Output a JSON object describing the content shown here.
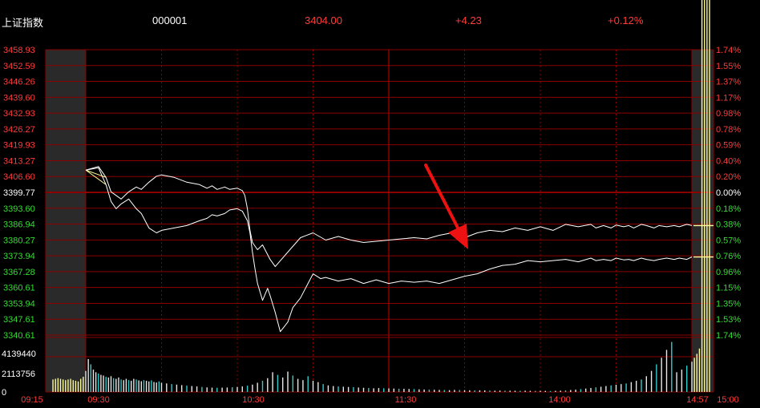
{
  "header": {
    "name": "上证指数",
    "code": "000001",
    "price": "3404.00",
    "change": "+4.23",
    "change_pct": "+0.12%"
  },
  "colors": {
    "background": "#000000",
    "grid": "#8b0000",
    "up": "#ff3b3b",
    "down": "#33dd33",
    "flat": "#ffffff",
    "price_line": "#ffffff",
    "avg_line": "#ffff99",
    "arrow": "#ee1111",
    "auction_shade": "#2a2a2a"
  },
  "chart_data": {
    "type": "line",
    "prev_close": 3399.77,
    "price_axis_labels": [
      "3458.93",
      "3452.59",
      "3446.26",
      "3439.60",
      "3432.93",
      "3426.27",
      "3419.93",
      "3413.27",
      "3406.60",
      "3399.77",
      "3393.60",
      "3386.94",
      "3380.27",
      "3373.94",
      "3367.28",
      "3360.61",
      "3353.94",
      "3347.61",
      "3340.61"
    ],
    "pct_axis_labels": [
      "1.74%",
      "1.55%",
      "1.37%",
      "1.17%",
      "0.98%",
      "0.78%",
      "0.59%",
      "0.40%",
      "0.20%",
      "0.00%",
      "0.18%",
      "0.38%",
      "0.57%",
      "0.76%",
      "0.96%",
      "1.15%",
      "1.35%",
      "1.53%",
      "1.74%"
    ],
    "ylim": [
      3340.61,
      3458.93
    ],
    "volume_axis_labels": [
      "4139440",
      "2113756",
      "0"
    ],
    "volume_ylim": [
      0,
      4139440
    ],
    "time_labels": [
      "09:15",
      "09:30",
      "10:30",
      "11:30",
      "14:00",
      "14:57",
      "15:00"
    ],
    "series": [
      {
        "key": "upper",
        "x": [
          0,
          5,
          8,
          10,
          12,
          14,
          17,
          20,
          22,
          25,
          28,
          30,
          35,
          40,
          45,
          48,
          50,
          52,
          55,
          57,
          60,
          62,
          63,
          64,
          65,
          66,
          68,
          70,
          73,
          75,
          80,
          85,
          90,
          95,
          100,
          105,
          110,
          115,
          120,
          125,
          130,
          135,
          140,
          145,
          150,
          155,
          160,
          165,
          170,
          175,
          180,
          185,
          190,
          195,
          200,
          202,
          205,
          208,
          210,
          213,
          215,
          217,
          220,
          222,
          225,
          227,
          230,
          233,
          235,
          238,
          240
        ],
        "y": [
          3409.0,
          3410.5,
          3406.0,
          3400.0,
          3398.5,
          3397.0,
          3400.0,
          3402.0,
          3401.0,
          3404.0,
          3406.5,
          3407.0,
          3406.0,
          3404.0,
          3403.0,
          3401.5,
          3402.5,
          3401.0,
          3402.0,
          3401.0,
          3401.5,
          3400.5,
          3398.5,
          3393.0,
          3384.0,
          3379.0,
          3376.0,
          3378.0,
          3372.0,
          3369.0,
          3375.0,
          3381.0,
          3383.0,
          3380.0,
          3381.5,
          3380.0,
          3379.0,
          3379.5,
          3380.0,
          3380.5,
          3381.0,
          3380.5,
          3382.0,
          3383.0,
          3381.0,
          3383.0,
          3384.0,
          3383.5,
          3385.0,
          3384.0,
          3385.5,
          3384.0,
          3386.5,
          3385.5,
          3386.5,
          3385.0,
          3386.0,
          3385.0,
          3386.2,
          3385.5,
          3386.0,
          3385.0,
          3386.5,
          3386.0,
          3385.0,
          3386.0,
          3385.5,
          3386.0,
          3385.5,
          3386.5,
          3386.0
        ]
      },
      {
        "key": "lower",
        "x": [
          0,
          5,
          8,
          10,
          12,
          14,
          17,
          20,
          22,
          25,
          28,
          30,
          35,
          40,
          45,
          48,
          50,
          52,
          55,
          57,
          60,
          62,
          63,
          64,
          65,
          66,
          67,
          68,
          70,
          72,
          73,
          75,
          77,
          80,
          82,
          85,
          88,
          90,
          93,
          95,
          100,
          105,
          110,
          115,
          120,
          125,
          130,
          135,
          140,
          145,
          150,
          155,
          160,
          165,
          170,
          175,
          180,
          185,
          190,
          195,
          200,
          202,
          205,
          208,
          210,
          213,
          215,
          217,
          220,
          222,
          225,
          227,
          230,
          233,
          235,
          238,
          240
        ],
        "y": [
          3409.0,
          3410.0,
          3403.0,
          3396.0,
          3393.0,
          3395.0,
          3397.0,
          3393.0,
          3391.0,
          3385.0,
          3383.0,
          3384.0,
          3385.0,
          3386.0,
          3388.0,
          3389.0,
          3390.5,
          3390.0,
          3391.0,
          3392.5,
          3393.0,
          3392.0,
          3390.0,
          3388.0,
          3383.0,
          3375.0,
          3368.0,
          3362.0,
          3355.0,
          3360.0,
          3357.0,
          3350.0,
          3342.0,
          3346.0,
          3352.0,
          3356.0,
          3362.0,
          3366.0,
          3364.0,
          3364.5,
          3363.0,
          3364.0,
          3362.0,
          3363.5,
          3362.0,
          3363.0,
          3362.5,
          3363.0,
          3362.0,
          3363.5,
          3365.0,
          3366.0,
          3368.0,
          3369.5,
          3370.0,
          3371.5,
          3371.0,
          3371.5,
          3372.0,
          3371.0,
          3372.5,
          3371.5,
          3372.0,
          3371.5,
          3372.5,
          3371.8,
          3372.0,
          3371.5,
          3372.5,
          3372.0,
          3371.5,
          3372.0,
          3372.5,
          3372.0,
          3372.5,
          3372.0,
          3373.0
        ]
      }
    ],
    "volume": {
      "x": [
        -13,
        -12,
        -11,
        -10,
        -9,
        -8,
        -7,
        -6,
        -5,
        -4,
        -3,
        -2,
        -1,
        0,
        1,
        2,
        3,
        4,
        5,
        6,
        7,
        8,
        9,
        10,
        11,
        12,
        13,
        14,
        15,
        16,
        17,
        18,
        19,
        20,
        21,
        22,
        23,
        24,
        25,
        26,
        27,
        28,
        29,
        30,
        32,
        34,
        36,
        38,
        40,
        42,
        44,
        46,
        48,
        50,
        52,
        54,
        56,
        58,
        60,
        62,
        64,
        66,
        68,
        70,
        72,
        74,
        76,
        78,
        80,
        82,
        84,
        86,
        88,
        90,
        92,
        94,
        96,
        98,
        100,
        102,
        104,
        106,
        108,
        110,
        112,
        114,
        116,
        118,
        120,
        122,
        124,
        126,
        128,
        130,
        132,
        134,
        136,
        138,
        140,
        142,
        144,
        146,
        148,
        150,
        152,
        154,
        156,
        158,
        160,
        162,
        164,
        166,
        168,
        170,
        172,
        174,
        176,
        178,
        180,
        182,
        184,
        186,
        188,
        190,
        192,
        194,
        196,
        198,
        200,
        202,
        204,
        206,
        208,
        210,
        212,
        214,
        216,
        218,
        220,
        222,
        224,
        226,
        228,
        230,
        232,
        234,
        236,
        238,
        240,
        241,
        242,
        243,
        244,
        245,
        246,
        247
      ],
      "v": [
        950000,
        1000000,
        1050000,
        1000000,
        950000,
        900000,
        950000,
        1000000,
        900000,
        850000,
        800000,
        1000000,
        1150000,
        1600000,
        2500000,
        2100000,
        1700000,
        1500000,
        1400000,
        1300000,
        1250000,
        1150000,
        1100000,
        1200000,
        1050000,
        1000000,
        1100000,
        950000,
        900000,
        1000000,
        900000,
        850000,
        1000000,
        950000,
        880000,
        820000,
        900000,
        850000,
        800000,
        880000,
        760000,
        720000,
        800000,
        700000,
        650000,
        600000,
        560000,
        520000,
        480000,
        450000,
        420000,
        380000,
        350000,
        330000,
        320000,
        330000,
        340000,
        360000,
        380000,
        420000,
        480000,
        560000,
        700000,
        850000,
        1050000,
        1500000,
        1300000,
        1100000,
        1550000,
        1250000,
        1000000,
        900000,
        1200000,
        850000,
        750000,
        600000,
        500000,
        450000,
        420000,
        400000,
        380000,
        360000,
        340000,
        320000,
        300000,
        280000,
        300000,
        280000,
        270000,
        260000,
        250000,
        240000,
        230000,
        220000,
        200000,
        190000,
        180000,
        170000,
        160000,
        150000,
        140000,
        160000,
        150000,
        140000,
        130000,
        120000,
        130000,
        120000,
        110000,
        100000,
        110000,
        100000,
        100000,
        95000,
        90000,
        100000,
        90000,
        85000,
        90000,
        85000,
        80000,
        90000,
        100000,
        120000,
        150000,
        180000,
        220000,
        260000,
        300000,
        350000,
        400000,
        450000,
        500000,
        550000,
        600000,
        650000,
        750000,
        850000,
        950000,
        1200000,
        1600000,
        2100000,
        2600000,
        3200000,
        3800000,
        1500000,
        1700000,
        2000000,
        2300000,
        2600000,
        2900000,
        3300000
      ]
    }
  }
}
